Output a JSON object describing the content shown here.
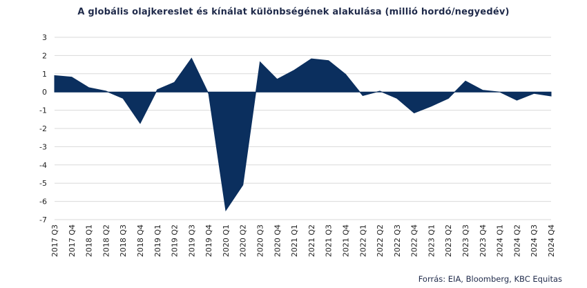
{
  "chart_data": {
    "type": "area",
    "title": "A globális olajkereslet és kínálat különbségének alakulása (millió hordó/negyedév)",
    "source": "Forrás: EIA, Bloomberg,  KBC Equitas",
    "xlabel": "",
    "ylabel": "",
    "ylim": [
      -7,
      3
    ],
    "yticks": [
      3,
      2,
      1,
      0,
      -1,
      -2,
      -3,
      -4,
      -5,
      -6,
      -7
    ],
    "grid": true,
    "color": "#0b2f5e",
    "categories": [
      "2017 Q3",
      "2017 Q4",
      "2018 Q1",
      "2018 Q2",
      "2018 Q3",
      "2018 Q4",
      "2019 Q1",
      "2019 Q2",
      "2019 Q3",
      "2019 Q4",
      "2020 Q1",
      "2020 Q2",
      "2020 Q3",
      "2020 Q4",
      "2021 Q1",
      "2021 Q2",
      "2021 Q3",
      "2021 Q4",
      "2022 Q1",
      "2022 Q2",
      "2022 Q3",
      "2022 Q4",
      "2023 Q1",
      "2023 Q2",
      "2023 Q3",
      "2023 Q4",
      "2024 Q1",
      "2024 Q2",
      "2024 Q3",
      "2024 Q4"
    ],
    "values": [
      0.9,
      0.82,
      0.24,
      0.05,
      -0.35,
      -1.72,
      0.13,
      0.53,
      1.85,
      -0.1,
      -6.5,
      -5.1,
      1.65,
      0.7,
      1.2,
      1.82,
      1.72,
      0.97,
      -0.2,
      0.05,
      -0.35,
      -1.15,
      -0.78,
      -0.35,
      0.6,
      0.1,
      0.0,
      -0.45,
      -0.08,
      -0.22
    ]
  }
}
